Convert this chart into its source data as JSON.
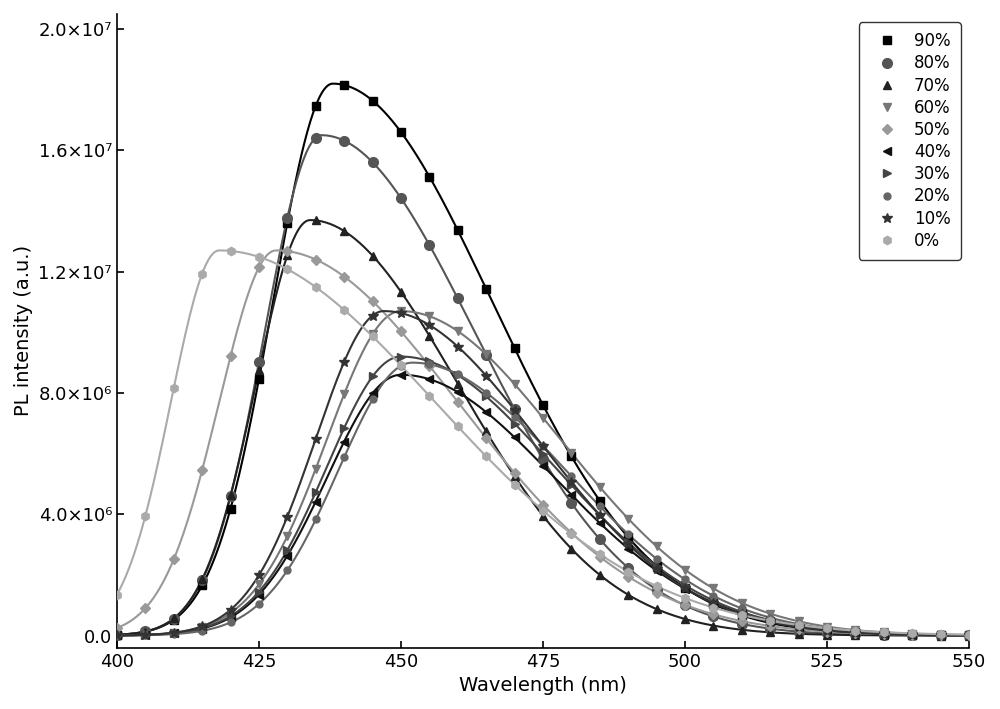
{
  "xlabel": "Wavelength (nm)",
  "ylabel": "PL intensity (a.u.)",
  "xlim": [
    400,
    550
  ],
  "ylim": [
    -400000.0,
    20500000.0
  ],
  "ytick_vals": [
    0,
    4000000,
    8000000,
    12000000,
    16000000,
    20000000
  ],
  "ytick_labels": [
    "0.0",
    "4.0×10⁶",
    "8.0×10⁶",
    "1.2×10⁷",
    "1.6×10⁷",
    "2.0×10⁷"
  ],
  "xtick_vals": [
    400,
    425,
    450,
    475,
    500,
    525,
    550
  ],
  "curves": [
    {
      "label": "90%",
      "color": "#000000",
      "marker": "s",
      "ms": 6,
      "peak_wl": 438,
      "peak_int": 18200000.0,
      "sl": 10.5,
      "sr": 28.0
    },
    {
      "label": "80%",
      "color": "#555555",
      "marker": "o",
      "ms": 7,
      "peak_wl": 436,
      "peak_int": 16500000.0,
      "sl": 10.0,
      "sr": 27.0
    },
    {
      "label": "70%",
      "color": "#222222",
      "marker": "^",
      "ms": 6,
      "peak_wl": 434,
      "peak_int": 13700000.0,
      "sl": 9.5,
      "sr": 26.0
    },
    {
      "label": "60%",
      "color": "#777777",
      "marker": "v",
      "ms": 6,
      "peak_wl": 450,
      "peak_int": 10700000.0,
      "sl": 13.0,
      "sr": 28.0
    },
    {
      "label": "50%",
      "color": "#999999",
      "marker": "D",
      "ms": 5,
      "peak_wl": 428,
      "peak_int": 12700000.0,
      "sl": 10.0,
      "sr": 32.0
    },
    {
      "label": "40%",
      "color": "#111111",
      "marker": "<",
      "ms": 6,
      "peak_wl": 450,
      "peak_int": 8600000.0,
      "sl": 13.0,
      "sr": 27.0
    },
    {
      "label": "30%",
      "color": "#444444",
      "marker": ">",
      "ms": 6,
      "peak_wl": 450,
      "peak_int": 9200000.0,
      "sl": 13.0,
      "sr": 27.0
    },
    {
      "label": "20%",
      "color": "#666666",
      "marker": "o",
      "ms": 5,
      "peak_wl": 452,
      "peak_int": 9000000.0,
      "sl": 13.0,
      "sr": 27.0
    },
    {
      "label": "10%",
      "color": "#333333",
      "marker": "*",
      "ms": 7,
      "peak_wl": 447,
      "peak_int": 10700000.0,
      "sl": 12.0,
      "sr": 27.0
    },
    {
      "label": "0%",
      "color": "#aaaaaa",
      "marker": "h",
      "ms": 6,
      "peak_wl": 418,
      "peak_int": 12700000.0,
      "sl": 8.5,
      "sr": 38.0
    }
  ]
}
